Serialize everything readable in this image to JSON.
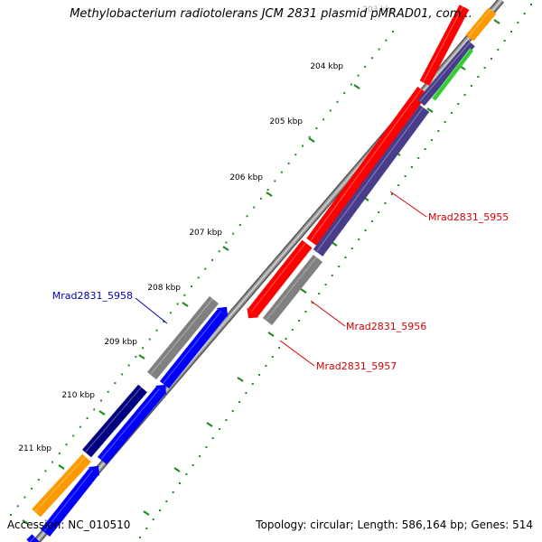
{
  "title": "Methylobacterium radiotolerans JCM 2831 plasmid pMRAD01, com...",
  "footer": {
    "accession": "Accession: NC_010510",
    "summary": "Topology: circular; Length: 586,164 bp; Genes: 514"
  },
  "kbp_labels": [
    "203 kbp",
    "204 kbp",
    "205 kbp",
    "206 kbp",
    "207 kbp",
    "208 kbp",
    "209 kbp",
    "210 kbp",
    "211 kbp"
  ],
  "gene_labels": [
    {
      "name": "Mrad2831_5955",
      "color": "#d40000"
    },
    {
      "name": "Mrad2831_5956",
      "color": "#d40000"
    },
    {
      "name": "Mrad2831_5957",
      "color": "#d40000"
    },
    {
      "name": "Mrad2831_5958",
      "color": "#0000b4"
    }
  ],
  "colors": {
    "backbone": "#888888",
    "ticks": "#1e8c1e",
    "red": "#ff0000",
    "slate": "#483d8b",
    "grey": "#808080",
    "blue": "#0000ff",
    "navy": "#000080",
    "orange": "#ff9900",
    "green": "#33cc33"
  }
}
